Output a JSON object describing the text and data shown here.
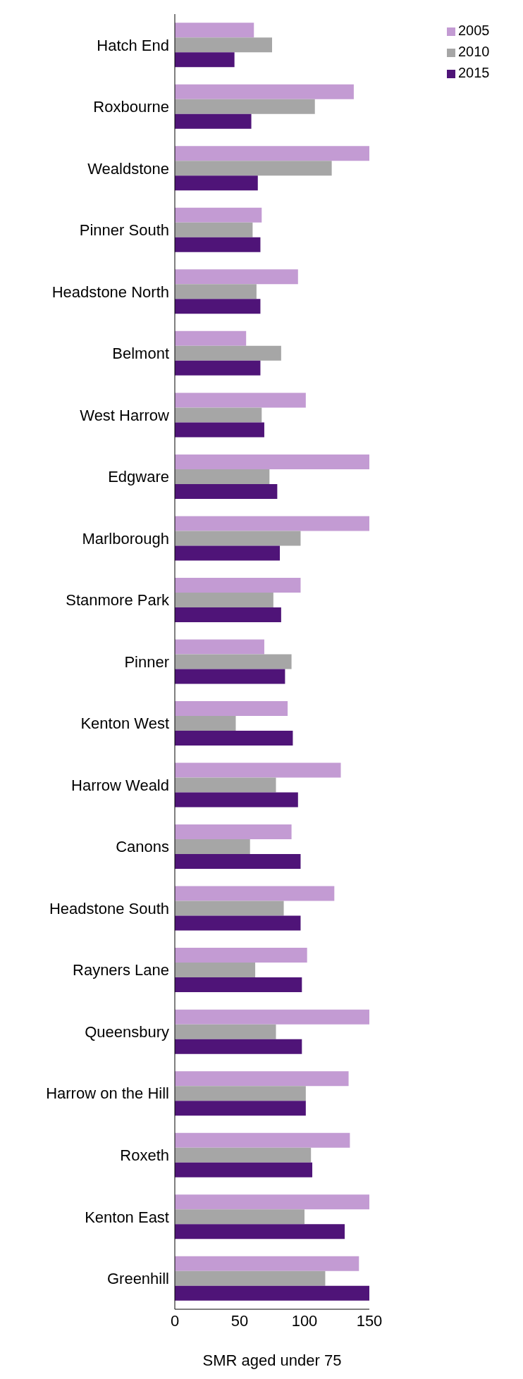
{
  "chart_data": {
    "type": "bar",
    "orientation": "horizontal",
    "xlabel": "SMR aged under 75",
    "categories": [
      "Hatch End",
      "Roxbourne",
      "Wealdstone",
      "Pinner South",
      "Headstone North",
      "Belmont",
      "West Harrow",
      "Edgware",
      "Marlborough",
      "Stanmore Park",
      "Pinner",
      "Kenton West",
      "Harrow Weald",
      "Canons",
      "Headstone South",
      "Rayners Lane",
      "Queensbury",
      "Harrow on the Hill",
      "Roxeth",
      "Kenton East",
      "Greenhill"
    ],
    "series": [
      {
        "name": "2005",
        "color": "#c39bd3",
        "values": [
          61,
          138,
          150,
          67,
          95,
          55,
          101,
          150,
          150,
          97,
          69,
          87,
          128,
          90,
          123,
          102,
          150,
          134,
          135,
          150,
          142
        ]
      },
      {
        "name": "2010",
        "color": "#a6a6a6",
        "values": [
          75,
          108,
          121,
          60,
          63,
          82,
          67,
          73,
          97,
          76,
          90,
          47,
          78,
          58,
          84,
          62,
          78,
          101,
          105,
          100,
          116
        ]
      },
      {
        "name": "2015",
        "color": "#4f1478",
        "values": [
          46,
          59,
          64,
          66,
          66,
          66,
          69,
          79,
          81,
          82,
          85,
          91,
          95,
          97,
          97,
          98,
          98,
          101,
          106,
          131,
          150
        ]
      }
    ],
    "xlim": [
      0,
      150
    ],
    "xticks": [
      0,
      50,
      100,
      150
    ],
    "grid": false,
    "legend": "top right"
  }
}
